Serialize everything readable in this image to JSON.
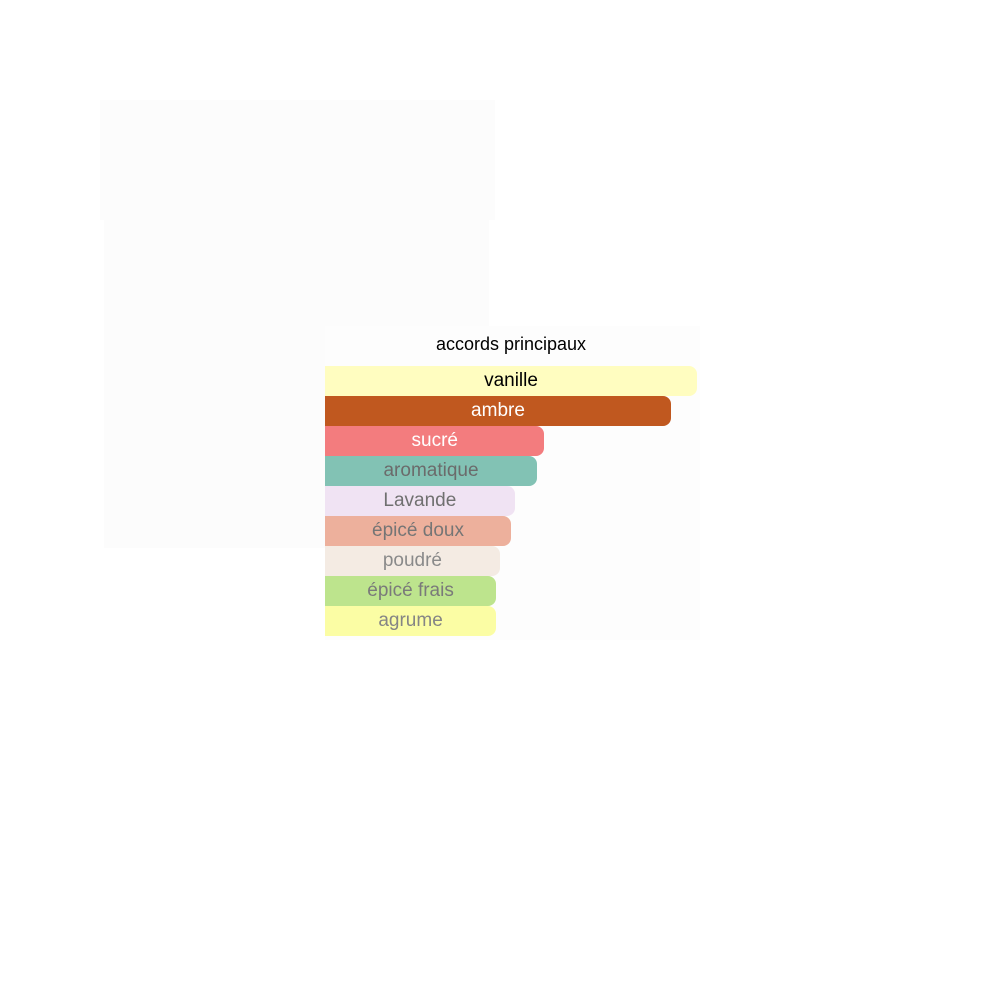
{
  "chart_data": {
    "type": "bar",
    "orientation": "horizontal",
    "title": "accords principaux",
    "xlim": [
      0,
      100
    ],
    "grid": false,
    "categories": [
      "vanille",
      "ambre",
      "sucré",
      "aromatique",
      "Lavande",
      "épicé doux",
      "poudré",
      "épicé frais",
      "agrume"
    ],
    "values": [
      100,
      93,
      59,
      57,
      51,
      50,
      47,
      46,
      46
    ],
    "colors": [
      "#fffdc0",
      "#c0581f",
      "#f37c7e",
      "#82c2b4",
      "#f0e3f3",
      "#edb09c",
      "#f4ebe3",
      "#bde48d",
      "#fbfda4"
    ],
    "text_colors": [
      "#000000",
      "#ffffff",
      "#ffffff",
      "#6b6b6b",
      "#707070",
      "#757575",
      "#8a8a8a",
      "#7a7a7a",
      "#858585"
    ]
  }
}
